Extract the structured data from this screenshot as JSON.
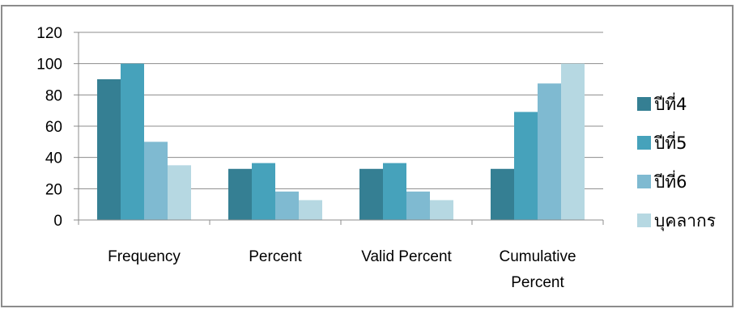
{
  "chart_data": {
    "type": "bar",
    "categories": [
      "Frequency",
      "Percent",
      "Valid Percent",
      "Cumulative Percent"
    ],
    "category_label_lines": [
      [
        "Frequency"
      ],
      [
        "Percent"
      ],
      [
        "Valid Percent"
      ],
      [
        "Cumulative",
        "Percent"
      ]
    ],
    "series": [
      {
        "name": "ปีที่4",
        "color": "#357f93",
        "values": [
          90,
          32.7,
          32.7,
          32.7
        ]
      },
      {
        "name": "ปีที่5",
        "color": "#46a2bb",
        "values": [
          100,
          36.4,
          36.4,
          69.1
        ]
      },
      {
        "name": "ปีที่6",
        "color": "#7fbad1",
        "values": [
          50,
          18.2,
          18.2,
          87.3
        ]
      },
      {
        "name": "บุคลากร",
        "color": "#b6d8e2",
        "values": [
          35,
          12.7,
          12.7,
          100
        ]
      }
    ],
    "ylim": [
      0,
      120
    ],
    "yticks": [
      0,
      20,
      40,
      60,
      80,
      100,
      120
    ],
    "grid": true,
    "legend_position": "right",
    "title": "",
    "xlabel": "",
    "ylabel": ""
  }
}
